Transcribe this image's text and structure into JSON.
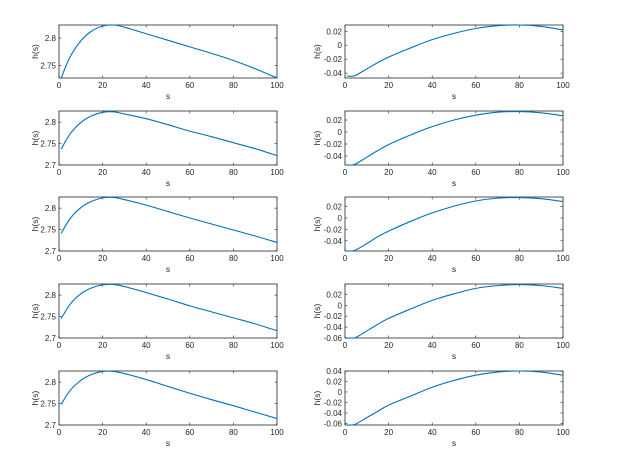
{
  "chart_data": [
    {
      "type": "line",
      "xlabel": "s",
      "ylabel": "h(s)",
      "xlim": [
        0,
        100
      ],
      "ylim": [
        2.727,
        2.824
      ],
      "xticks": [
        0,
        20,
        40,
        60,
        80,
        100
      ],
      "yticks": [
        2.75,
        2.8
      ],
      "ytick_labels": [
        "2.75",
        "2.8"
      ],
      "color": "#0072BD",
      "x": [
        1,
        5,
        10,
        15,
        20,
        25,
        30,
        40,
        50,
        60,
        70,
        80,
        90,
        100
      ],
      "y": [
        2.727,
        2.765,
        2.795,
        2.813,
        2.822,
        2.824,
        2.82,
        2.808,
        2.796,
        2.784,
        2.772,
        2.759,
        2.744,
        2.727
      ]
    },
    {
      "type": "line",
      "xlabel": "s",
      "ylabel": "h(s)",
      "xlim": [
        0,
        100
      ],
      "ylim": [
        -0.047,
        0.029
      ],
      "xticks": [
        0,
        20,
        40,
        60,
        80,
        100
      ],
      "yticks": [
        -0.04,
        -0.02,
        0,
        0.02
      ],
      "ytick_labels": [
        "-0.04",
        "-0.02",
        "0",
        "0.02"
      ],
      "color": "#0072BD",
      "x": [
        1,
        3,
        5,
        10,
        15,
        20,
        30,
        40,
        50,
        60,
        70,
        80,
        90,
        100
      ],
      "y": [
        -0.044,
        -0.0445,
        -0.043,
        -0.034,
        -0.025,
        -0.017,
        -0.004,
        0.008,
        0.017,
        0.024,
        0.028,
        0.029,
        0.027,
        0.022
      ]
    },
    {
      "type": "line",
      "xlabel": "s",
      "ylabel": "h(s)",
      "xlim": [
        0,
        100
      ],
      "ylim": [
        2.7,
        2.826
      ],
      "xticks": [
        0,
        20,
        40,
        60,
        80,
        100
      ],
      "yticks": [
        2.7,
        2.75,
        2.8
      ],
      "ytick_labels": [
        "2.7",
        "2.75",
        "2.8"
      ],
      "color": "#0072BD",
      "x": [
        1,
        5,
        10,
        15,
        20,
        25,
        30,
        40,
        50,
        60,
        70,
        80,
        90,
        100
      ],
      "y": [
        2.737,
        2.772,
        2.799,
        2.815,
        2.823,
        2.824,
        2.819,
        2.808,
        2.794,
        2.779,
        2.766,
        2.752,
        2.738,
        2.722
      ]
    },
    {
      "type": "line",
      "xlabel": "s",
      "ylabel": "h(s)",
      "xlim": [
        0,
        100
      ],
      "ylim": [
        -0.055,
        0.035
      ],
      "xticks": [
        0,
        20,
        40,
        60,
        80,
        100
      ],
      "yticks": [
        -0.04,
        -0.02,
        0,
        0.02
      ],
      "ytick_labels": [
        "-0.04",
        "-0.02",
        "0",
        "0.02"
      ],
      "color": "#0072BD",
      "x": [
        1,
        3,
        5,
        10,
        15,
        20,
        30,
        40,
        50,
        60,
        70,
        80,
        90,
        100
      ],
      "y": [
        -0.055,
        -0.0552,
        -0.053,
        -0.042,
        -0.031,
        -0.021,
        -0.005,
        0.009,
        0.02,
        0.028,
        0.033,
        0.034,
        0.032,
        0.027
      ]
    },
    {
      "type": "line",
      "xlabel": "s",
      "ylabel": "h(s)",
      "xlim": [
        0,
        100
      ],
      "ylim": [
        2.7,
        2.826
      ],
      "xticks": [
        0,
        20,
        40,
        60,
        80,
        100
      ],
      "yticks": [
        2.7,
        2.75,
        2.8
      ],
      "ytick_labels": [
        "2.7",
        "2.75",
        "2.8"
      ],
      "color": "#0072BD",
      "x": [
        1,
        5,
        10,
        15,
        20,
        25,
        30,
        40,
        50,
        60,
        70,
        80,
        90,
        100
      ],
      "y": [
        2.741,
        2.775,
        2.801,
        2.816,
        2.824,
        2.825,
        2.82,
        2.807,
        2.792,
        2.777,
        2.763,
        2.749,
        2.735,
        2.72
      ]
    },
    {
      "type": "line",
      "xlabel": "s",
      "ylabel": "h(s)",
      "xlim": [
        0,
        100
      ],
      "ylim": [
        -0.058,
        0.037
      ],
      "xticks": [
        0,
        20,
        40,
        60,
        80,
        100
      ],
      "yticks": [
        -0.04,
        -0.02,
        0,
        0.02
      ],
      "ytick_labels": [
        "-0.04",
        "-0.02",
        "0",
        "0.02"
      ],
      "color": "#0072BD",
      "x": [
        1,
        3,
        5,
        10,
        15,
        20,
        30,
        40,
        50,
        60,
        70,
        80,
        90,
        100
      ],
      "y": [
        -0.058,
        -0.0582,
        -0.056,
        -0.045,
        -0.033,
        -0.023,
        -0.006,
        0.009,
        0.021,
        0.03,
        0.035,
        0.036,
        0.034,
        0.029
      ]
    },
    {
      "type": "line",
      "xlabel": "s",
      "ylabel": "h(s)",
      "xlim": [
        0,
        100
      ],
      "ylim": [
        2.7,
        2.826
      ],
      "xticks": [
        0,
        20,
        40,
        60,
        80,
        100
      ],
      "yticks": [
        2.7,
        2.75,
        2.8
      ],
      "ytick_labels": [
        "2.7",
        "2.75",
        "2.8"
      ],
      "color": "#0072BD",
      "x": [
        1,
        5,
        10,
        15,
        20,
        25,
        30,
        40,
        50,
        60,
        70,
        80,
        90,
        100
      ],
      "y": [
        2.745,
        2.778,
        2.803,
        2.817,
        2.824,
        2.825,
        2.82,
        2.806,
        2.791,
        2.775,
        2.761,
        2.747,
        2.733,
        2.717
      ]
    },
    {
      "type": "line",
      "xlabel": "s",
      "ylabel": "h(s)",
      "xlim": [
        0,
        100
      ],
      "ylim": [
        -0.06,
        0.039
      ],
      "xticks": [
        0,
        20,
        40,
        60,
        80,
        100
      ],
      "yticks": [
        -0.06,
        -0.04,
        -0.02,
        0,
        0.02
      ],
      "ytick_labels": [
        "-0.06",
        "-0.04",
        "-0.02",
        "0",
        "0.02"
      ],
      "color": "#0072BD",
      "x": [
        1,
        3,
        5,
        10,
        15,
        20,
        30,
        40,
        50,
        60,
        70,
        80,
        90,
        100
      ],
      "y": [
        -0.06,
        -0.0605,
        -0.059,
        -0.047,
        -0.035,
        -0.024,
        -0.007,
        0.009,
        0.021,
        0.031,
        0.036,
        0.038,
        0.036,
        0.031
      ]
    },
    {
      "type": "line",
      "xlabel": "s",
      "ylabel": "h(s)",
      "xlim": [
        0,
        100
      ],
      "ylim": [
        2.7,
        2.826
      ],
      "xticks": [
        0,
        20,
        40,
        60,
        80,
        100
      ],
      "yticks": [
        2.7,
        2.75,
        2.8
      ],
      "ytick_labels": [
        "2.7",
        "2.75",
        "2.8"
      ],
      "color": "#0072BD",
      "x": [
        1,
        5,
        10,
        15,
        20,
        25,
        30,
        40,
        50,
        60,
        70,
        80,
        90,
        100
      ],
      "y": [
        2.748,
        2.78,
        2.804,
        2.818,
        2.825,
        2.825,
        2.82,
        2.806,
        2.79,
        2.774,
        2.759,
        2.745,
        2.73,
        2.715
      ]
    },
    {
      "type": "line",
      "xlabel": "s",
      "ylabel": "h(s)",
      "xlim": [
        0,
        100
      ],
      "ylim": [
        -0.063,
        0.04
      ],
      "xticks": [
        0,
        20,
        40,
        60,
        80,
        100
      ],
      "yticks": [
        -0.06,
        -0.04,
        -0.02,
        0,
        0.02,
        0.04
      ],
      "ytick_labels": [
        "-0.06",
        "-0.04",
        "-0.02",
        "0",
        "0.02",
        "0.04"
      ],
      "color": "#0072BD",
      "x": [
        1,
        3,
        5,
        10,
        15,
        20,
        30,
        40,
        50,
        60,
        70,
        80,
        90,
        100
      ],
      "y": [
        -0.063,
        -0.0632,
        -0.061,
        -0.049,
        -0.037,
        -0.025,
        -0.008,
        0.009,
        0.022,
        0.032,
        0.038,
        0.04,
        0.038,
        0.032
      ]
    }
  ]
}
